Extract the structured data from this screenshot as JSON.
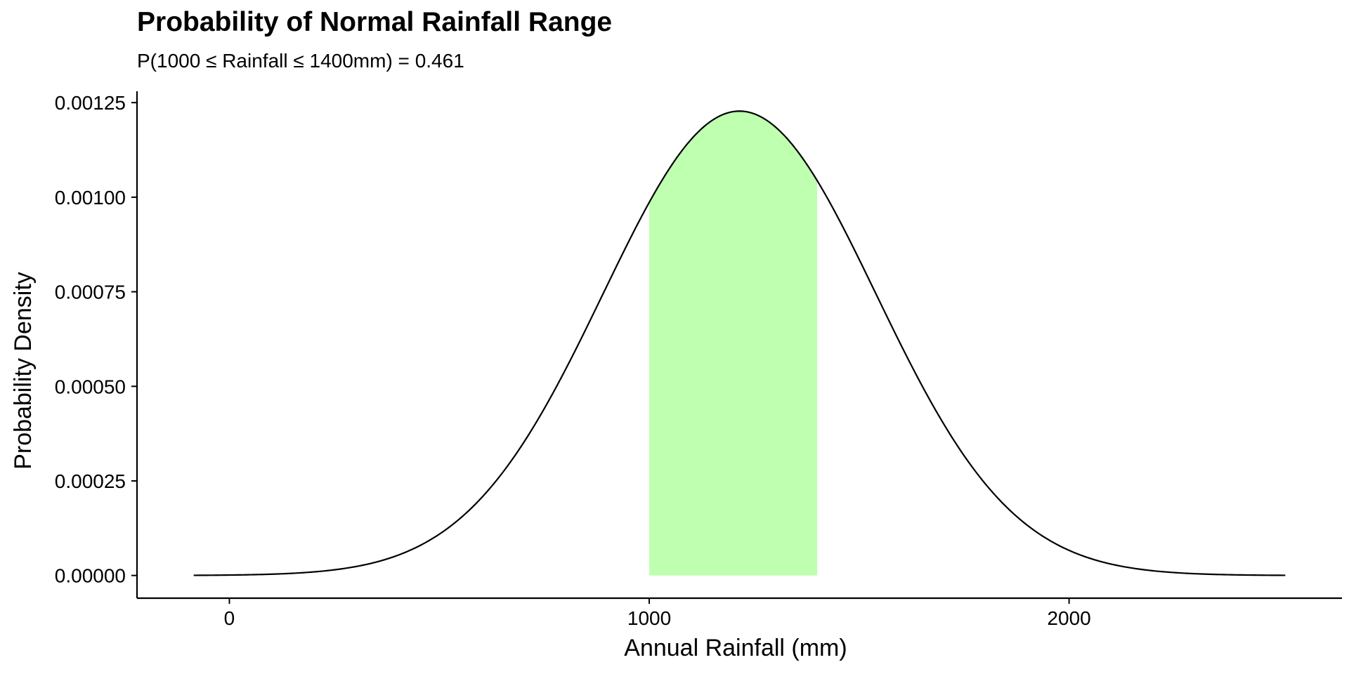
{
  "chart_data": {
    "type": "area",
    "title": "Probability of Normal Rainfall Range",
    "subtitle": "P(1000 ≤ Rainfall ≤ 1400mm) = 0.461",
    "xlabel": "Annual Rainfall (mm)",
    "ylabel": "Probability Density",
    "xlim": [
      -220,
      2650
    ],
    "ylim": [
      -6e-05,
      0.00128
    ],
    "x_ticks": [
      0,
      1000,
      2000
    ],
    "x_tick_labels": [
      "0",
      "1000",
      "2000"
    ],
    "y_ticks": [
      0,
      0.00025,
      0.0005,
      0.00075,
      0.001,
      0.00125
    ],
    "y_tick_labels": [
      "0.00000",
      "0.00025",
      "0.00050",
      "0.00075",
      "0.00100",
      "0.00125"
    ],
    "grid": false,
    "legend": "none",
    "series": [
      {
        "distribution": "normal",
        "mean": 1215,
        "sd": 325,
        "x_range": [
          -85,
          2515
        ],
        "line_color": "#000000"
      }
    ],
    "shaded_region": {
      "x_from": 1000,
      "x_to": 1400,
      "probability": 0.461,
      "fill_color": "#BFFFB0"
    }
  }
}
